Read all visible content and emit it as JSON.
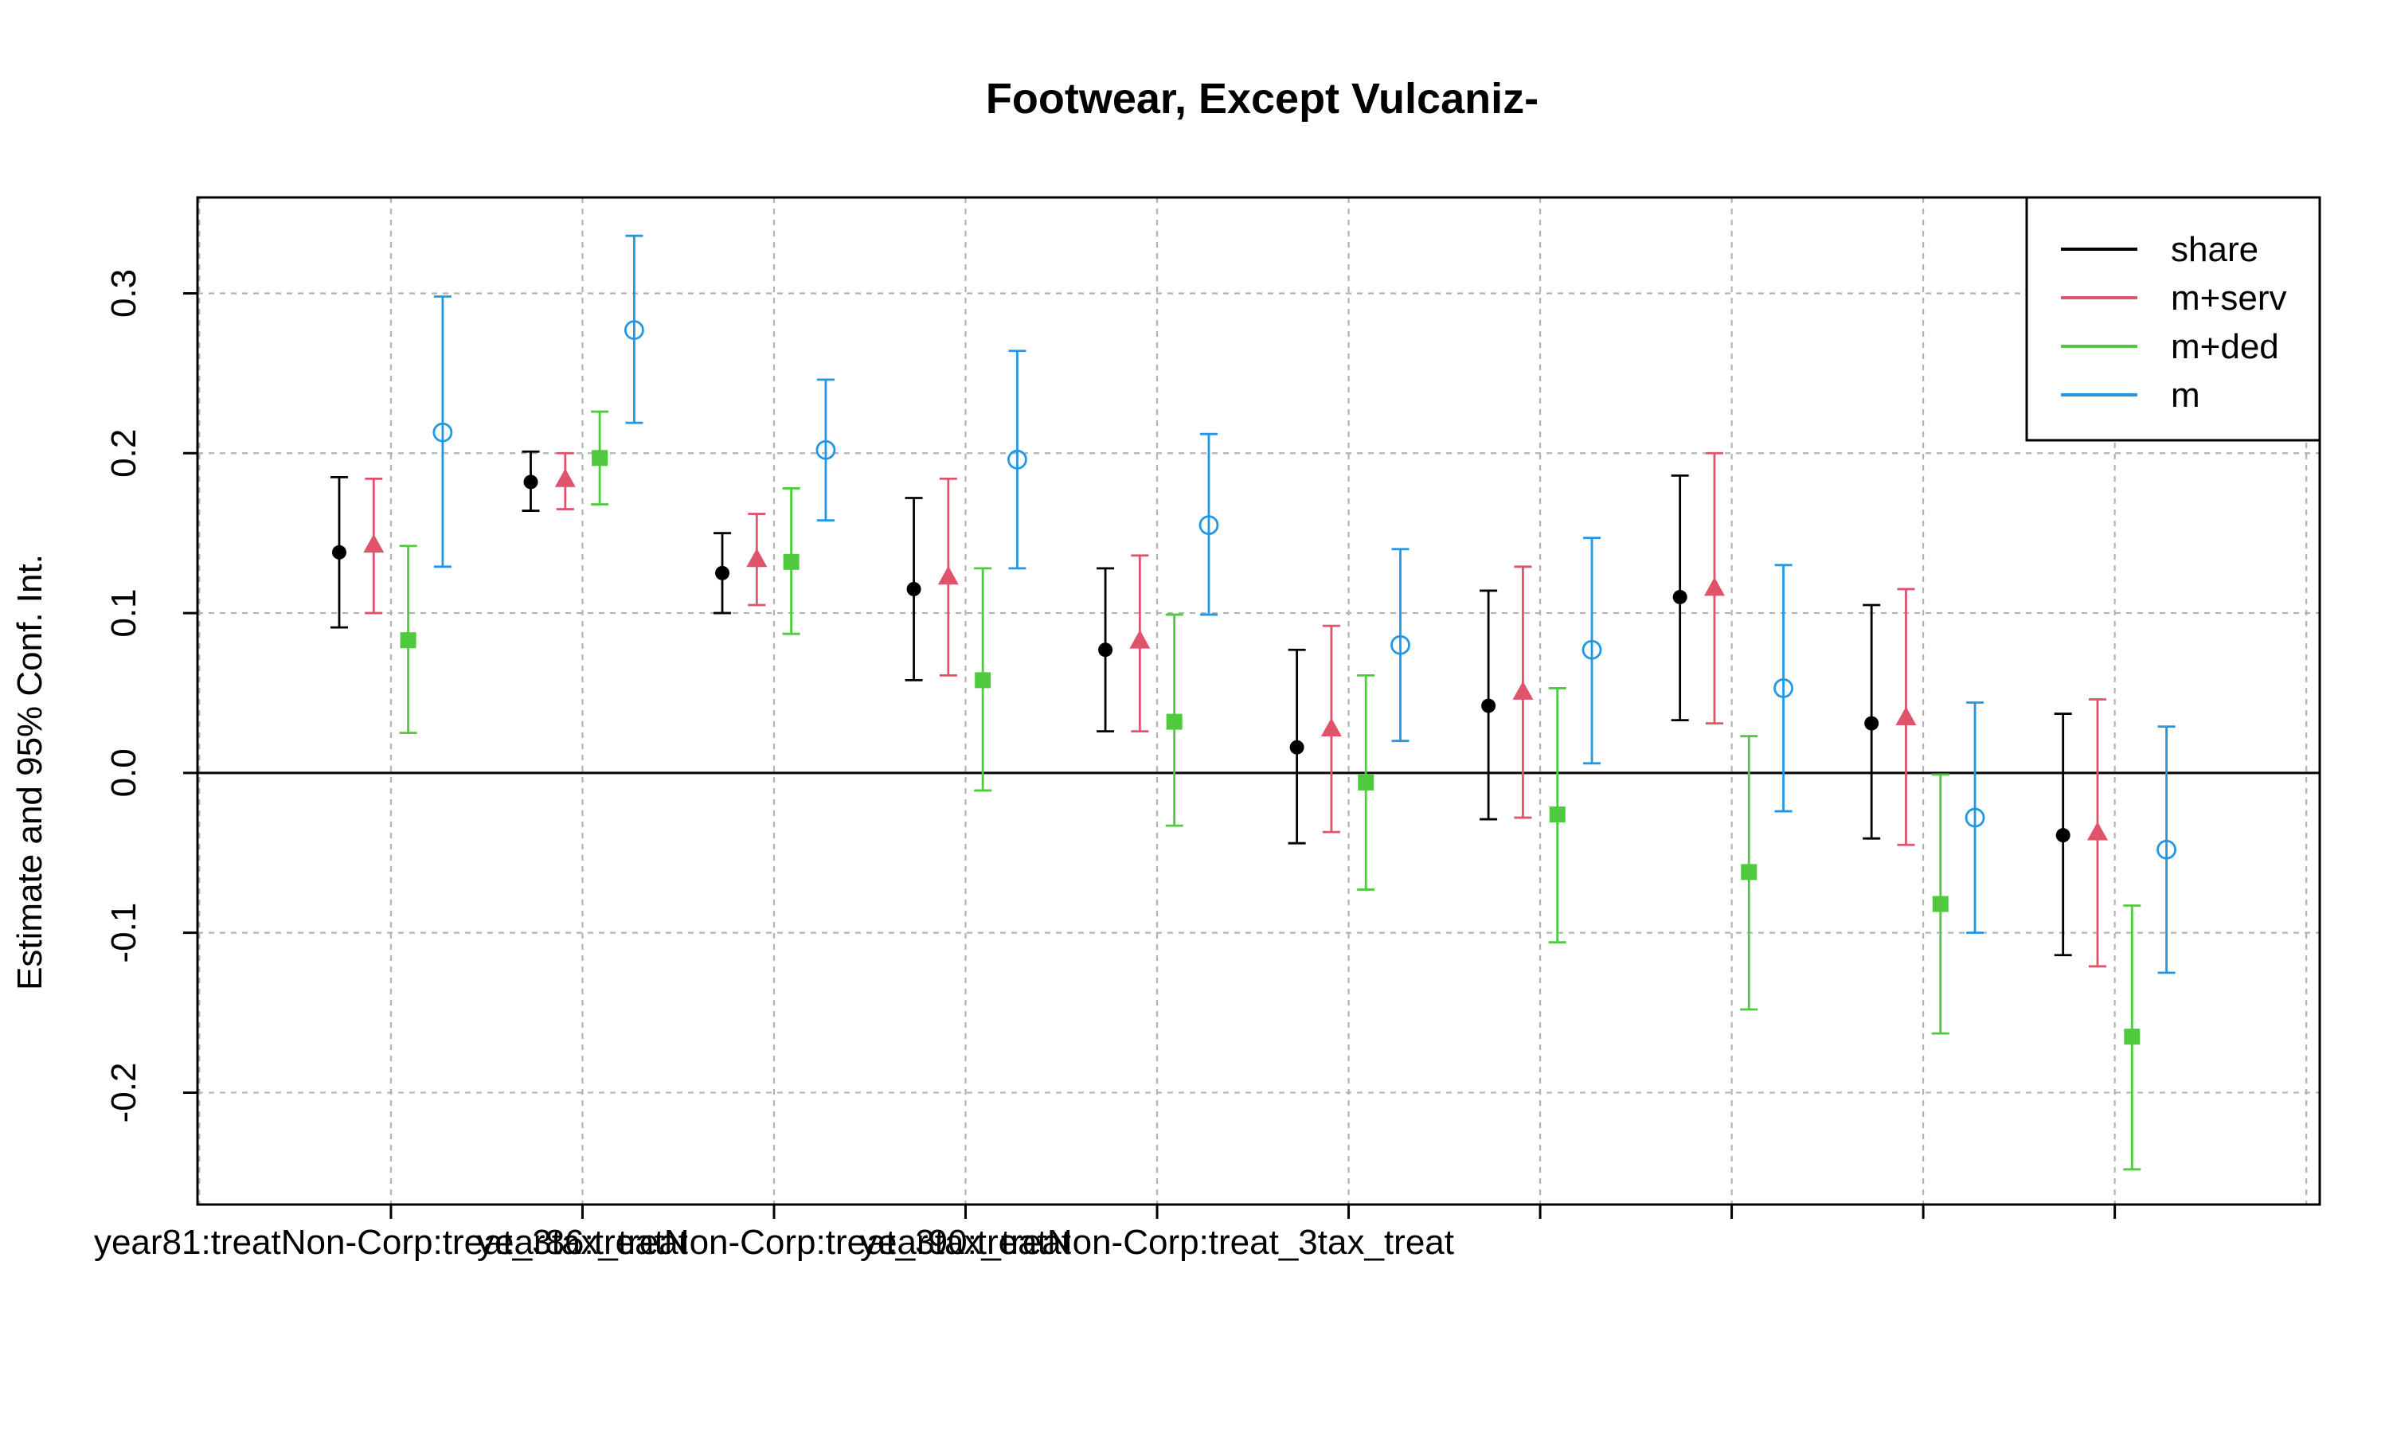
{
  "chart_data": {
    "type": "scatter",
    "title": "Footwear, Except Vulcaniz-",
    "xlabel": "",
    "ylabel": "Estimate and 95% Conf. Int.",
    "ylim": [
      -0.27,
      0.36
    ],
    "y_ticks": [
      "-0.2",
      "-0.1",
      "0.0",
      "0.1",
      "0.2",
      "0.3"
    ],
    "y_tick_values": [
      -0.2,
      -0.1,
      0.0,
      0.1,
      0.2,
      0.3
    ],
    "x_tick_labels": [
      "year81:treatNon-Corp:treat_3tax_treat",
      "year86:treatNon-Corp:treat_3tax_treat",
      "year90:treatNon-Corp:treat_3tax_treat"
    ],
    "x_tick_label_positions": [
      1,
      3,
      5
    ],
    "x_tick_positions": [
      1,
      2,
      3,
      4,
      5,
      6,
      7,
      8,
      9,
      10
    ],
    "x_range": [
      -0.01,
      11.07
    ],
    "grid": true,
    "reference_line": 0,
    "legend_placement": "top-right",
    "series": [
      {
        "name": "share",
        "color": "#000000",
        "marker": "filled-circle",
        "offset": -0.27,
        "estimates": [
          0.138,
          0.182,
          0.125,
          0.115,
          0.077,
          0.016,
          0.042,
          0.11,
          0.031,
          -0.039
        ],
        "lower": [
          0.091,
          0.164,
          0.1,
          0.058,
          0.026,
          -0.044,
          -0.029,
          0.033,
          -0.041,
          -0.114
        ],
        "upper": [
          0.185,
          0.201,
          0.15,
          0.172,
          0.128,
          0.077,
          0.114,
          0.186,
          0.105,
          0.037
        ]
      },
      {
        "name": "m+serv",
        "color": "#DF536B",
        "marker": "filled-triangle",
        "offset": -0.09,
        "estimates": [
          0.143,
          0.184,
          0.134,
          0.123,
          0.083,
          0.028,
          0.051,
          0.116,
          0.035,
          -0.037
        ],
        "lower": [
          0.1,
          0.165,
          0.105,
          0.061,
          0.026,
          -0.037,
          -0.028,
          0.031,
          -0.045,
          -0.121
        ],
        "upper": [
          0.184,
          0.2,
          0.162,
          0.184,
          0.136,
          0.092,
          0.129,
          0.2,
          0.115,
          0.046
        ]
      },
      {
        "name": "m+ded",
        "color": "#4FCA3E",
        "marker": "filled-square",
        "offset": 0.09,
        "estimates": [
          0.083,
          0.197,
          0.132,
          0.058,
          0.032,
          -0.006,
          -0.026,
          -0.062,
          -0.082,
          -0.165
        ],
        "lower": [
          0.025,
          0.168,
          0.087,
          -0.011,
          -0.033,
          -0.073,
          -0.106,
          -0.148,
          -0.163,
          -0.248
        ],
        "upper": [
          0.142,
          0.226,
          0.178,
          0.128,
          0.099,
          0.061,
          0.053,
          0.023,
          -0.001,
          -0.083
        ]
      },
      {
        "name": "m",
        "color": "#2297E6",
        "marker": "open-circle",
        "offset": 0.27,
        "estimates": [
          0.213,
          0.277,
          0.202,
          0.196,
          0.155,
          0.08,
          0.077,
          0.053,
          -0.028,
          -0.048
        ],
        "lower": [
          0.129,
          0.219,
          0.158,
          0.128,
          0.099,
          0.02,
          0.006,
          -0.024,
          -0.1,
          -0.125
        ],
        "upper": [
          0.298,
          0.336,
          0.246,
          0.264,
          0.212,
          0.14,
          0.147,
          0.13,
          0.044,
          0.029
        ]
      }
    ]
  }
}
